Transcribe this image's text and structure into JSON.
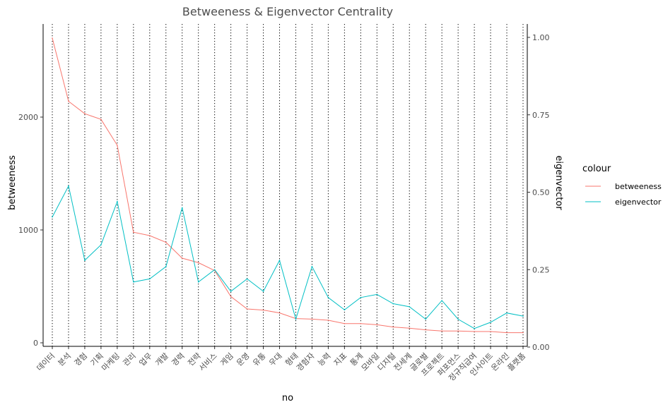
{
  "chart_data": {
    "type": "line",
    "title": "Betweeness & Eigenvector Centrality",
    "xlabel": "no",
    "ylabel": "betweeness",
    "y2label": "eigenvector",
    "categories": [
      "데이터",
      "분석",
      "경험",
      "기획",
      "마케팅",
      "관리",
      "업무",
      "개발",
      "경력",
      "전략",
      "서비스",
      "게임",
      "운영",
      "유통",
      "우대",
      "형태",
      "경험자",
      "능력",
      "지표",
      "통계",
      "모바일",
      "디지털",
      "전세계",
      "글로벌",
      "프로젝트",
      "퍼포먼스",
      "정규직급여",
      "인사이트",
      "온라인",
      "플랫폼"
    ],
    "ylim": [
      0,
      2750
    ],
    "y_ticks": [
      0,
      1000,
      2000
    ],
    "y2lim": [
      0,
      1.0
    ],
    "y2_ticks": [
      0.0,
      0.25,
      0.5,
      0.75,
      1.0
    ],
    "y2_tick_labels": [
      "0.00",
      "0.25",
      "0.50",
      "0.75",
      "1.00"
    ],
    "grid": "vertical dotted lines at each category",
    "series": [
      {
        "name": "betweeness",
        "axis": "left",
        "color": "#F8766D",
        "values": [
          2700,
          2140,
          2030,
          1980,
          1750,
          980,
          950,
          890,
          750,
          710,
          640,
          410,
          300,
          290,
          265,
          215,
          210,
          200,
          170,
          170,
          160,
          140,
          130,
          115,
          105,
          105,
          100,
          100,
          90,
          90
        ]
      },
      {
        "name": "eigenvector",
        "axis": "right",
        "color": "#00BFC4",
        "values": [
          0.42,
          0.52,
          0.28,
          0.33,
          0.47,
          0.21,
          0.22,
          0.26,
          0.45,
          0.21,
          0.25,
          0.18,
          0.22,
          0.18,
          0.28,
          0.09,
          0.26,
          0.16,
          0.12,
          0.16,
          0.17,
          0.14,
          0.13,
          0.09,
          0.15,
          0.09,
          0.06,
          0.08,
          0.11,
          0.1
        ]
      }
    ],
    "legend": {
      "title": "colour",
      "position": "right",
      "items": [
        "betweeness",
        "eigenvector"
      ]
    }
  }
}
